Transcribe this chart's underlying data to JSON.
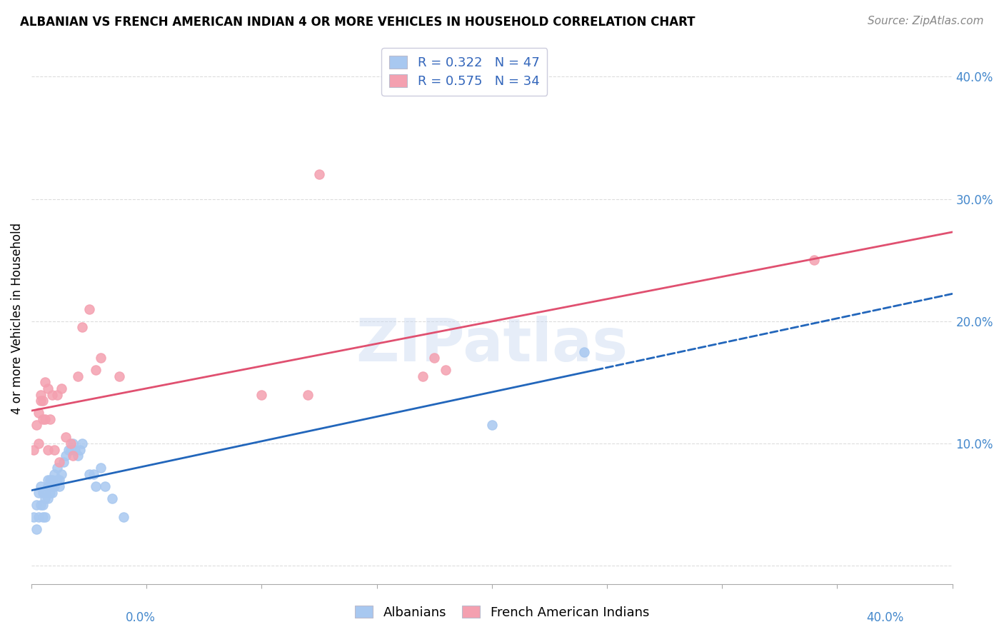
{
  "title": "ALBANIAN VS FRENCH AMERICAN INDIAN 4 OR MORE VEHICLES IN HOUSEHOLD CORRELATION CHART",
  "source": "Source: ZipAtlas.com",
  "ylabel": "4 or more Vehicles in Household",
  "xlim": [
    0.0,
    0.4
  ],
  "ylim": [
    -0.015,
    0.42
  ],
  "ytick_values": [
    0.0,
    0.1,
    0.2,
    0.3,
    0.4
  ],
  "ytick_labels": [
    "",
    "10.0%",
    "20.0%",
    "30.0%",
    "40.0%"
  ],
  "albanian_color": "#a8c8f0",
  "french_color": "#f4a0b0",
  "albanian_line_color": "#2266bb",
  "french_line_color": "#e05070",
  "watermark": "ZIPatlas",
  "alb_line_solid_end": 0.245,
  "alb_line_dash_start": 0.245,
  "alb_line_dash_end": 0.4,
  "fr_line_end": 0.4,
  "legend_labels": [
    "R = 0.322   N = 47",
    "R = 0.575   N = 34"
  ],
  "bottom_legend_labels": [
    "Albanians",
    "French American Indians"
  ],
  "albanian_scatter_x": [
    0.001,
    0.002,
    0.002,
    0.003,
    0.003,
    0.004,
    0.004,
    0.005,
    0.005,
    0.005,
    0.006,
    0.006,
    0.006,
    0.007,
    0.007,
    0.007,
    0.008,
    0.008,
    0.008,
    0.009,
    0.009,
    0.009,
    0.01,
    0.01,
    0.011,
    0.011,
    0.012,
    0.012,
    0.013,
    0.014,
    0.015,
    0.016,
    0.017,
    0.018,
    0.019,
    0.02,
    0.021,
    0.022,
    0.025,
    0.027,
    0.028,
    0.03,
    0.032,
    0.035,
    0.04,
    0.2,
    0.24
  ],
  "albanian_scatter_y": [
    0.04,
    0.03,
    0.05,
    0.04,
    0.06,
    0.05,
    0.065,
    0.05,
    0.06,
    0.04,
    0.055,
    0.06,
    0.04,
    0.065,
    0.055,
    0.07,
    0.065,
    0.07,
    0.06,
    0.07,
    0.06,
    0.065,
    0.075,
    0.065,
    0.08,
    0.07,
    0.07,
    0.065,
    0.075,
    0.085,
    0.09,
    0.095,
    0.095,
    0.1,
    0.095,
    0.09,
    0.095,
    0.1,
    0.075,
    0.075,
    0.065,
    0.08,
    0.065,
    0.055,
    0.04,
    0.115,
    0.175
  ],
  "french_scatter_x": [
    0.001,
    0.002,
    0.003,
    0.003,
    0.004,
    0.004,
    0.005,
    0.005,
    0.006,
    0.006,
    0.007,
    0.007,
    0.008,
    0.009,
    0.01,
    0.011,
    0.012,
    0.013,
    0.015,
    0.017,
    0.018,
    0.02,
    0.022,
    0.025,
    0.028,
    0.03,
    0.1,
    0.12,
    0.125,
    0.17,
    0.175,
    0.18,
    0.34,
    0.038
  ],
  "french_scatter_y": [
    0.095,
    0.115,
    0.1,
    0.125,
    0.135,
    0.14,
    0.12,
    0.135,
    0.15,
    0.12,
    0.145,
    0.095,
    0.12,
    0.14,
    0.095,
    0.14,
    0.085,
    0.145,
    0.105,
    0.1,
    0.09,
    0.155,
    0.195,
    0.21,
    0.16,
    0.17,
    0.14,
    0.14,
    0.32,
    0.155,
    0.17,
    0.16,
    0.25,
    0.155
  ],
  "background_color": "#ffffff",
  "grid_color": "#dddddd",
  "title_fontsize": 12,
  "source_fontsize": 11,
  "tick_fontsize": 12,
  "legend_fontsize": 13,
  "ylabel_fontsize": 12
}
